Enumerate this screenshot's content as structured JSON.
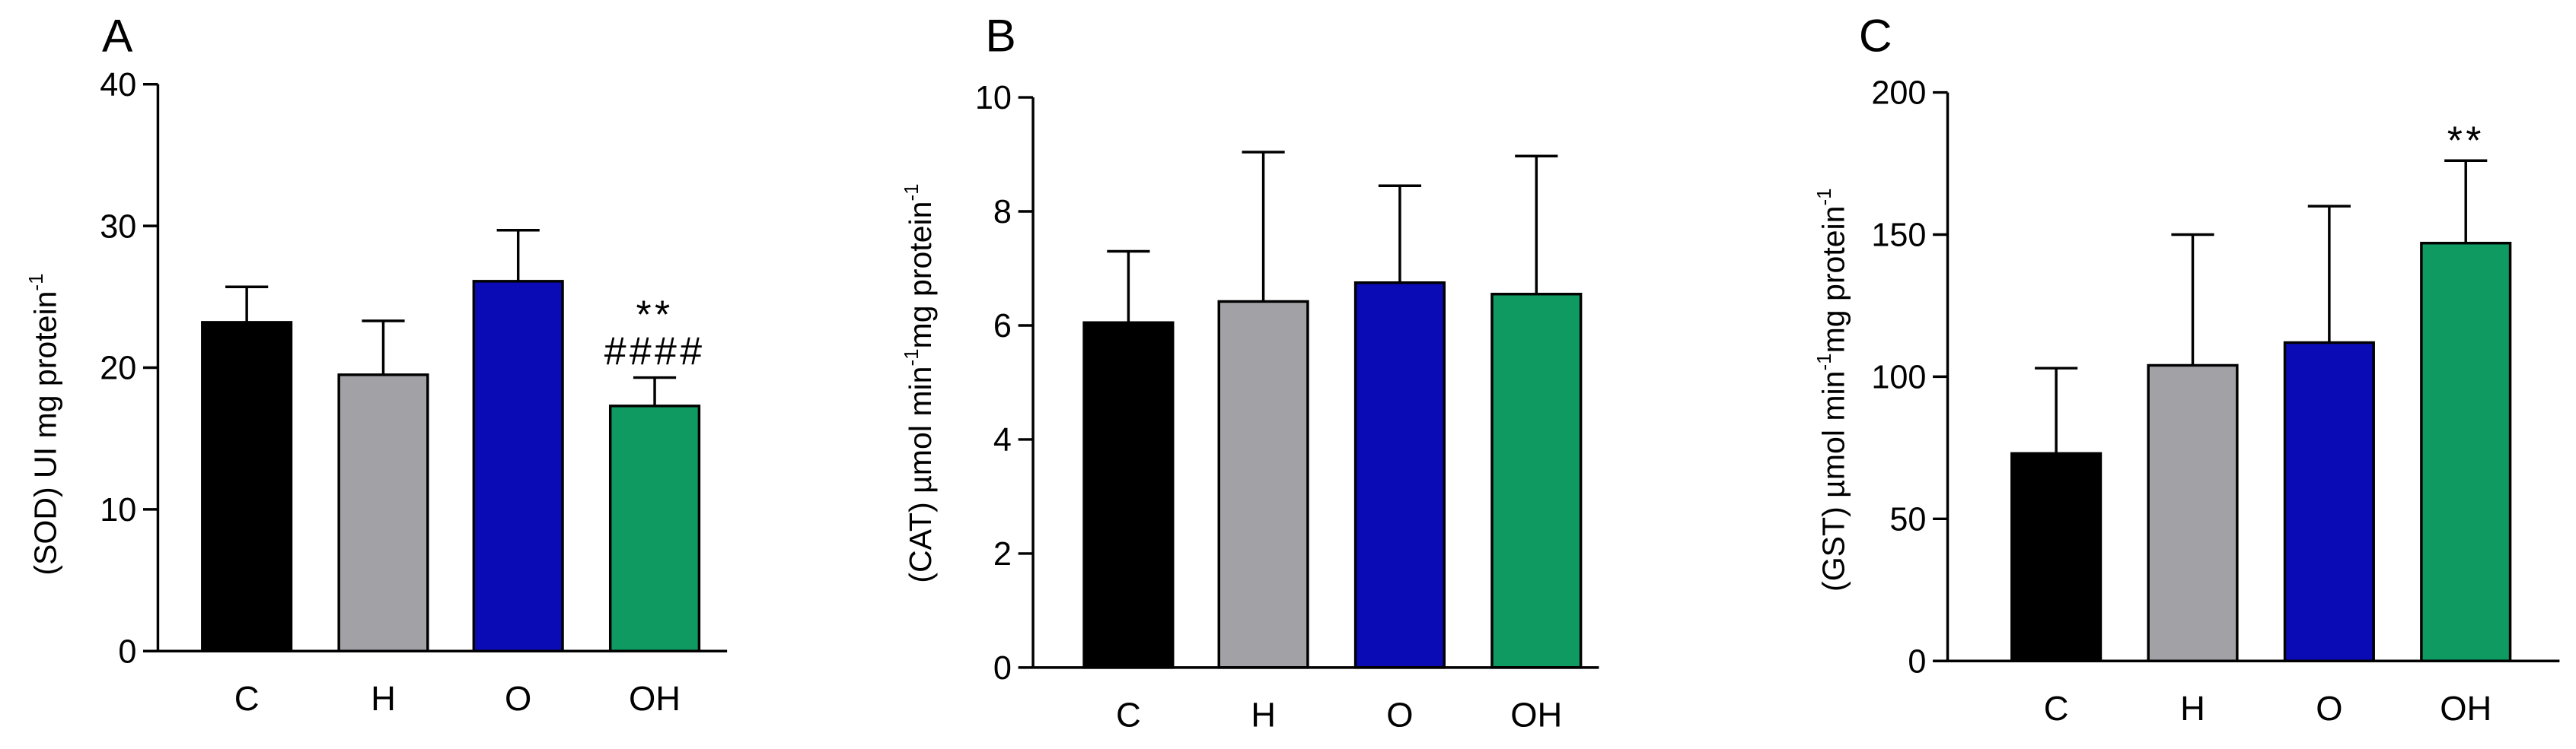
{
  "colors": {
    "C": "#000000",
    "H": "#a2a1a6",
    "O": "#0a0bb5",
    "OH": "#0f9a62"
  },
  "chart_data": [
    {
      "panel": "A",
      "type": "bar",
      "ylabel_main": "(SOD) UI mg protein",
      "ylabel_sup": "-1",
      "categories": [
        "C",
        "H",
        "O",
        "OH"
      ],
      "values": [
        23.2,
        19.5,
        26.1,
        17.3
      ],
      "errors": [
        2.5,
        3.8,
        3.6,
        2.0
      ],
      "ylim": [
        0,
        40
      ],
      "yticks": [
        0,
        10,
        20,
        30,
        40
      ],
      "annotations": [
        {
          "category": "OH",
          "lines": [
            "**",
            "####"
          ]
        }
      ]
    },
    {
      "panel": "B",
      "type": "bar",
      "ylabel_main": "(CAT) µmol min",
      "ylabel_sup": "-1",
      "ylabel_main2": "mg protein",
      "ylabel_sup2": "-1",
      "categories": [
        "C",
        "H",
        "O",
        "OH"
      ],
      "values": [
        6.05,
        6.42,
        6.75,
        6.55
      ],
      "errors": [
        1.25,
        2.62,
        1.7,
        2.42
      ],
      "ylim": [
        0,
        10
      ],
      "yticks": [
        0,
        2,
        4,
        6,
        8,
        10
      ],
      "annotations": []
    },
    {
      "panel": "C",
      "type": "bar",
      "ylabel_main": "(GST) µmol min",
      "ylabel_sup": "-1",
      "ylabel_main2": "mg protein",
      "ylabel_sup2": "-1",
      "categories": [
        "C",
        "H",
        "O",
        "OH"
      ],
      "values": [
        73,
        104,
        112,
        147
      ],
      "errors": [
        30,
        46,
        48,
        29
      ],
      "ylim": [
        0,
        200
      ],
      "yticks": [
        0,
        50,
        100,
        150,
        200
      ],
      "annotations": [
        {
          "category": "OH",
          "lines": [
            "**"
          ]
        }
      ]
    }
  ]
}
